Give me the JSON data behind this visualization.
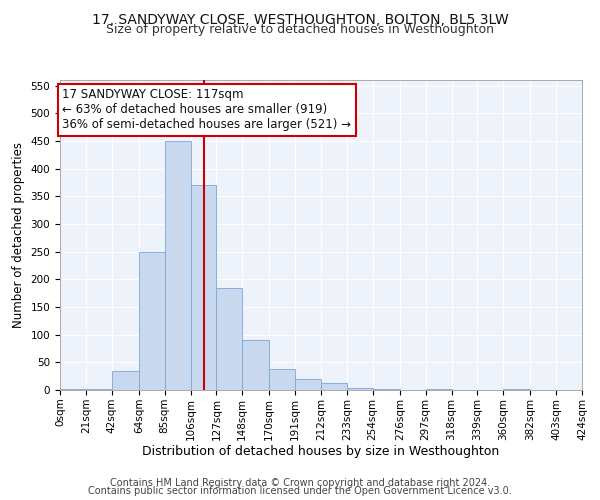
{
  "title": "17, SANDYWAY CLOSE, WESTHOUGHTON, BOLTON, BL5 3LW",
  "subtitle": "Size of property relative to detached houses in Westhoughton",
  "xlabel": "Distribution of detached houses by size in Westhoughton",
  "ylabel": "Number of detached properties",
  "bin_edges": [
    0,
    21,
    42,
    64,
    85,
    106,
    127,
    148,
    170,
    191,
    212,
    233,
    254,
    276,
    297,
    318,
    339,
    360,
    382,
    403,
    424
  ],
  "bar_heights": [
    2,
    2,
    35,
    250,
    450,
    370,
    185,
    90,
    38,
    20,
    12,
    3,
    2,
    0,
    2,
    0,
    0,
    1,
    0,
    0
  ],
  "bar_color": "#c8d8ee",
  "bar_edge_color": "#7ba7d4",
  "property_line_x": 117,
  "property_line_color": "#cc0000",
  "annotation_text": "17 SANDYWAY CLOSE: 117sqm\n← 63% of detached houses are smaller (919)\n36% of semi-detached houses are larger (521) →",
  "annotation_box_color": "#ffffff",
  "annotation_box_edge_color": "#cc0000",
  "ylim": [
    0,
    560
  ],
  "yticks": [
    0,
    50,
    100,
    150,
    200,
    250,
    300,
    350,
    400,
    450,
    500,
    550
  ],
  "x_tick_labels": [
    "0sqm",
    "21sqm",
    "42sqm",
    "64sqm",
    "85sqm",
    "106sqm",
    "127sqm",
    "148sqm",
    "170sqm",
    "191sqm",
    "212sqm",
    "233sqm",
    "254sqm",
    "276sqm",
    "297sqm",
    "318sqm",
    "339sqm",
    "360sqm",
    "382sqm",
    "403sqm",
    "424sqm"
  ],
  "background_color": "#eef2fb",
  "grid_color": "#ffffff",
  "footer_line1": "Contains HM Land Registry data © Crown copyright and database right 2024.",
  "footer_line2": "Contains public sector information licensed under the Open Government Licence v3.0.",
  "title_fontsize": 10,
  "subtitle_fontsize": 9,
  "axis_label_fontsize": 8.5,
  "tick_fontsize": 7.5,
  "annotation_fontsize": 8.5,
  "footer_fontsize": 7
}
